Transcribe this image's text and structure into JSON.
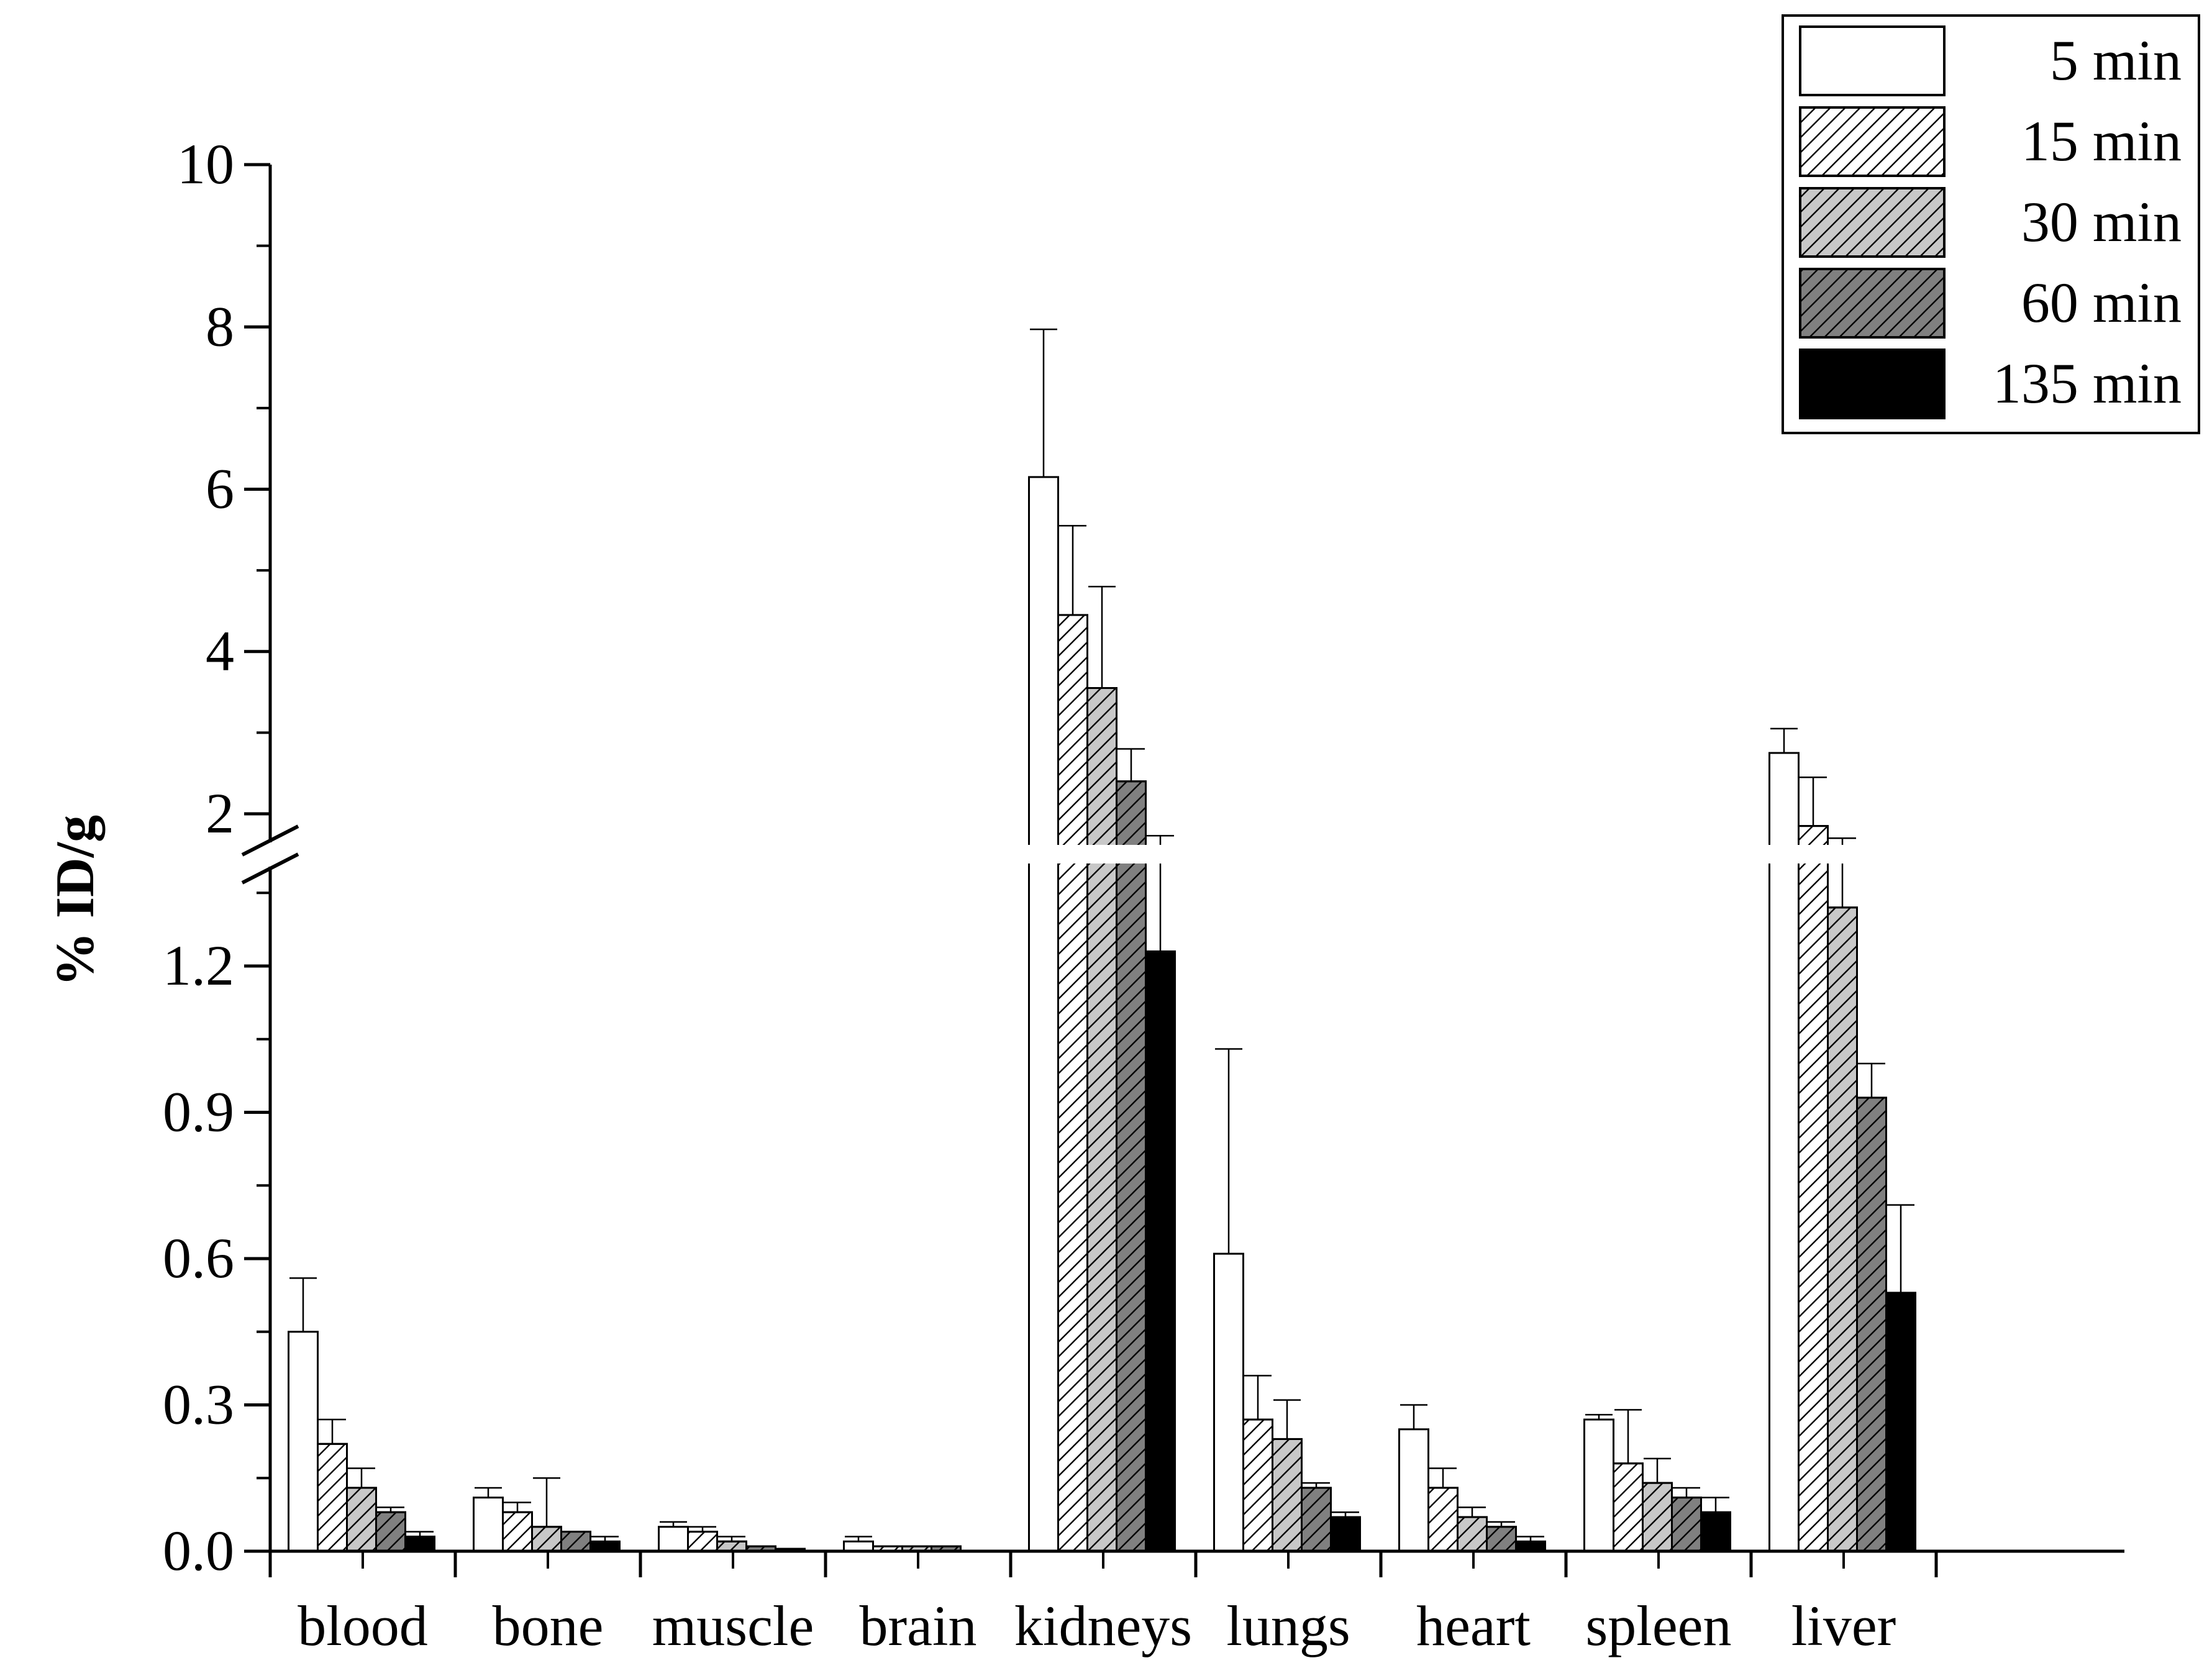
{
  "chart_data": {
    "type": "bar",
    "ylabel": "% ID/g",
    "y_axis_broken": true,
    "lower_ylim": [
      0,
      1.4
    ],
    "lower_yticks": [
      "0.0",
      "0.3",
      "0.6",
      "0.9",
      "1.2"
    ],
    "upper_ylim": [
      1.4,
      10
    ],
    "upper_yticks": [
      "2",
      "4",
      "6",
      "8",
      "10"
    ],
    "legend_position": "top-right",
    "categories": [
      "blood",
      "bone",
      "muscle",
      "brain",
      "kidneys",
      "lungs",
      "heart",
      "spleen",
      "liver"
    ],
    "series": [
      {
        "name": "5 min",
        "fill": "#ffffff",
        "hatch": false,
        "values": [
          0.45,
          0.11,
          0.05,
          0.02,
          6.15,
          0.61,
          0.25,
          0.27,
          2.75
        ],
        "errors": [
          0.11,
          0.02,
          0.01,
          0.01,
          1.82,
          0.42,
          0.05,
          0.01,
          0.3
        ]
      },
      {
        "name": "15 min",
        "fill": "#ffffff",
        "hatch": true,
        "values": [
          0.22,
          0.08,
          0.04,
          0.01,
          4.45,
          0.27,
          0.13,
          0.18,
          1.85
        ],
        "errors": [
          0.05,
          0.02,
          0.01,
          0.0,
          1.1,
          0.09,
          0.04,
          0.11,
          0.6
        ]
      },
      {
        "name": "30 min",
        "fill": "#c8c8c8",
        "hatch": true,
        "values": [
          0.13,
          0.05,
          0.02,
          0.01,
          3.55,
          0.23,
          0.07,
          0.14,
          1.32
        ],
        "errors": [
          0.04,
          0.1,
          0.01,
          0.0,
          1.25,
          0.08,
          0.02,
          0.05,
          0.38
        ]
      },
      {
        "name": "60 min",
        "fill": "#808080",
        "hatch": true,
        "values": [
          0.08,
          0.04,
          0.01,
          0.01,
          2.4,
          0.13,
          0.05,
          0.11,
          0.93
        ],
        "errors": [
          0.01,
          0.0,
          0.0,
          0.0,
          0.4,
          0.01,
          0.01,
          0.02,
          0.07
        ]
      },
      {
        "name": "135 min",
        "fill": "#000000",
        "hatch": false,
        "values": [
          0.03,
          0.02,
          0.005,
          0.0,
          1.23,
          0.07,
          0.02,
          0.08,
          0.53
        ],
        "errors": [
          0.01,
          0.01,
          0.0,
          0.0,
          0.5,
          0.01,
          0.01,
          0.03,
          0.18
        ]
      }
    ]
  }
}
